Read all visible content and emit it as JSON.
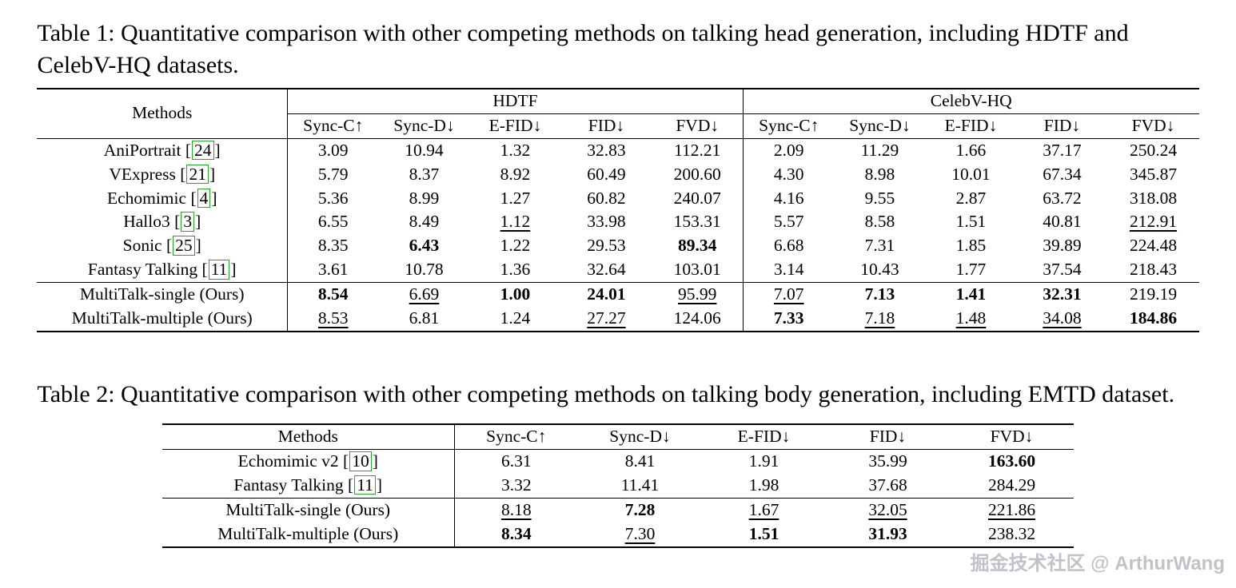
{
  "watermark": {
    "text": "掘金技术社区 @ ArthurWang"
  },
  "table1": {
    "caption": "Table 1: Quantitative comparison with other competing methods on talking head generation, including HDTF and CelebV-HQ datasets.",
    "methods_header": "Methods",
    "groups": [
      "HDTF",
      "CelebV-HQ"
    ],
    "metrics": [
      "Sync-C↑",
      "Sync-D↓",
      "E-FID↓",
      "FID↓",
      "FVD↓"
    ],
    "rows": [
      {
        "method": "AniPortrait",
        "cite": "24",
        "values": [
          "3.09",
          "10.94",
          "1.32",
          "32.83",
          "112.21",
          "2.09",
          "11.29",
          "1.66",
          "37.17",
          "250.24"
        ],
        "styles": [
          "",
          "",
          "",
          "",
          "",
          "",
          "",
          "",
          "",
          ""
        ]
      },
      {
        "method": "VExpress",
        "cite": "21",
        "values": [
          "5.79",
          "8.37",
          "8.92",
          "60.49",
          "200.60",
          "4.30",
          "8.98",
          "10.01",
          "67.34",
          "345.87"
        ],
        "styles": [
          "",
          "",
          "",
          "",
          "",
          "",
          "",
          "",
          "",
          ""
        ]
      },
      {
        "method": "Echomimic",
        "cite": "4",
        "values": [
          "5.36",
          "8.99",
          "1.27",
          "60.82",
          "240.07",
          "4.16",
          "9.55",
          "2.87",
          "63.72",
          "318.08"
        ],
        "styles": [
          "",
          "",
          "",
          "",
          "",
          "",
          "",
          "",
          "",
          ""
        ]
      },
      {
        "method": "Hallo3",
        "cite": "3",
        "values": [
          "6.55",
          "8.49",
          "1.12",
          "33.98",
          "153.31",
          "5.57",
          "8.58",
          "1.51",
          "40.81",
          "212.91"
        ],
        "styles": [
          "",
          "",
          "u",
          "",
          "",
          "",
          "",
          "",
          "",
          "u"
        ]
      },
      {
        "method": "Sonic",
        "cite": "25",
        "values": [
          "8.35",
          "6.43",
          "1.22",
          "29.53",
          "89.34",
          "6.68",
          "7.31",
          "1.85",
          "39.89",
          "224.48"
        ],
        "styles": [
          "",
          "b",
          "",
          "",
          "b",
          "",
          "",
          "",
          "",
          ""
        ]
      },
      {
        "method": "Fantasy Talking",
        "cite": "11",
        "values": [
          "3.61",
          "10.78",
          "1.36",
          "32.64",
          "103.01",
          "3.14",
          "10.43",
          "1.77",
          "37.54",
          "218.43"
        ],
        "styles": [
          "",
          "",
          "",
          "",
          "",
          "",
          "",
          "",
          "",
          ""
        ]
      },
      {
        "method": "MultiTalk-single (Ours)",
        "ours": true,
        "values": [
          "8.54",
          "6.69",
          "1.00",
          "24.01",
          "95.99",
          "7.07",
          "7.13",
          "1.41",
          "32.31",
          "219.19"
        ],
        "styles": [
          "b",
          "u",
          "b",
          "b",
          "u",
          "u",
          "b",
          "b",
          "b",
          ""
        ]
      },
      {
        "method": "MultiTalk-multiple (Ours)",
        "ours": true,
        "values": [
          "8.53",
          "6.81",
          "1.24",
          "27.27",
          "124.06",
          "7.33",
          "7.18",
          "1.48",
          "34.08",
          "184.86"
        ],
        "styles": [
          "u",
          "",
          "",
          "u",
          "",
          "b",
          "u",
          "u",
          "u",
          "b"
        ]
      }
    ]
  },
  "table2": {
    "caption": "Table 2: Quantitative comparison with other competing methods on talking body generation, including EMTD dataset.",
    "methods_header": "Methods",
    "metrics": [
      "Sync-C↑",
      "Sync-D↓",
      "E-FID↓",
      "FID↓",
      "FVD↓"
    ],
    "rows": [
      {
        "method": "Echomimic v2",
        "cite": "10",
        "values": [
          "6.31",
          "8.41",
          "1.91",
          "35.99",
          "163.60"
        ],
        "styles": [
          "",
          "",
          "",
          "",
          "b"
        ]
      },
      {
        "method": "Fantasy Talking",
        "cite": "11",
        "values": [
          "3.32",
          "11.41",
          "1.98",
          "37.68",
          "284.29"
        ],
        "styles": [
          "",
          "",
          "",
          "",
          ""
        ]
      },
      {
        "method": "MultiTalk-single (Ours)",
        "ours": true,
        "values": [
          "8.18",
          "7.28",
          "1.67",
          "32.05",
          "221.86"
        ],
        "styles": [
          "u",
          "b",
          "u",
          "u",
          "u"
        ]
      },
      {
        "method": "MultiTalk-multiple (Ours)",
        "ours": true,
        "values": [
          "8.34",
          "7.30",
          "1.51",
          "31.93",
          "238.32"
        ],
        "styles": [
          "b",
          "u",
          "b",
          "b",
          ""
        ]
      }
    ]
  }
}
